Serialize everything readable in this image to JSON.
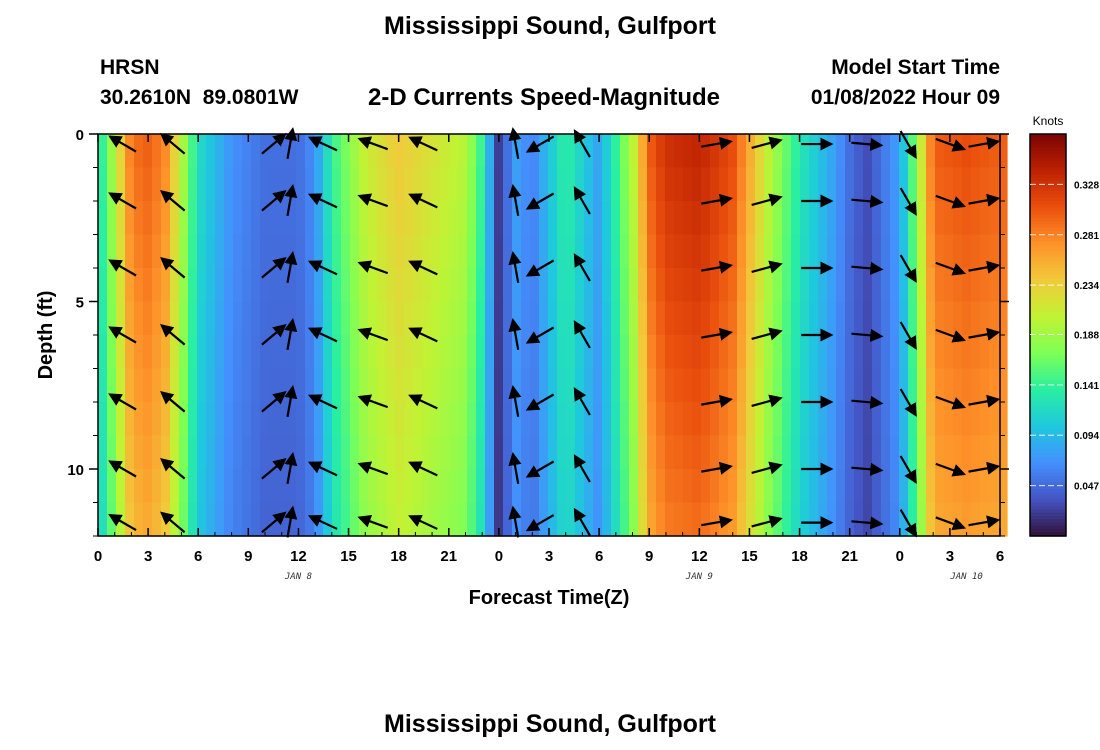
{
  "page": {
    "title": "Mississippi Sound, Gulfport",
    "title_bottom": "Mississippi Sound, Gulfport",
    "station_id": "HRSN",
    "station_coords": "30.2610N  89.0801W",
    "subtitle": "2-D Currents Speed-Magnitude",
    "model_start_label": "Model Start Time",
    "model_start_value": "01/08/2022 Hour 09"
  },
  "chart_data": {
    "type": "heatmap",
    "xlabel": "Forecast Time(Z)",
    "ylabel": "Depth (ft)",
    "x_tick_labels": [
      "0",
      "3",
      "6",
      "9",
      "12",
      "15",
      "18",
      "21",
      "0",
      "3",
      "6",
      "9",
      "12",
      "15",
      "18",
      "21",
      "0",
      "3",
      "6"
    ],
    "x_range_hours": [
      0,
      54
    ],
    "day_labels": [
      {
        "label": "JAN 8",
        "hour": 12
      },
      {
        "label": "JAN 9",
        "hour": 36
      },
      {
        "label": "JAN 10",
        "hour": 52
      }
    ],
    "y_ticks": [
      0,
      5,
      10
    ],
    "ylim": [
      0,
      12
    ],
    "y_inverted": true,
    "colorbar": {
      "title": "Knots",
      "min": 0.0,
      "max": 0.375,
      "ticks": [
        "0.047",
        "0.094",
        "0.141",
        "0.188",
        "0.234",
        "0.281",
        "0.328"
      ],
      "tick_values": [
        0.047,
        0.094,
        0.141,
        0.188,
        0.234,
        0.281,
        0.328
      ],
      "colormap": [
        "#30123b",
        "#4454c4",
        "#4490fe",
        "#1fc8de",
        "#29efa2",
        "#7dff56",
        "#c1f334",
        "#f1ca3a",
        "#fe922a",
        "#ea4f0d",
        "#be2102",
        "#7a0403"
      ]
    },
    "speed_profile_hours": [
      0,
      1,
      2,
      3,
      4,
      5,
      6,
      8,
      10,
      12,
      13,
      14,
      16,
      18,
      20,
      22,
      23,
      24,
      25,
      26,
      28,
      30,
      32,
      33,
      34,
      36,
      38,
      40,
      42,
      44,
      45,
      46,
      48,
      49,
      50,
      52,
      54
    ],
    "speed_profile_knots": [
      0.12,
      0.2,
      0.29,
      0.3,
      0.28,
      0.2,
      0.12,
      0.07,
      0.05,
      0.05,
      0.07,
      0.14,
      0.21,
      0.24,
      0.22,
      0.2,
      0.14,
      0.02,
      0.08,
      0.06,
      0.14,
      0.08,
      0.2,
      0.3,
      0.33,
      0.34,
      0.31,
      0.21,
      0.13,
      0.08,
      0.05,
      0.03,
      0.08,
      0.18,
      0.3,
      0.31,
      0.3
    ],
    "depth_levels_ft": [
      0,
      2,
      4,
      6,
      8,
      10,
      12
    ],
    "vector_hours": [
      1.5,
      4.5,
      10.5,
      11.5,
      13.5,
      16.5,
      19.5,
      25,
      26.5,
      29,
      37,
      40,
      43,
      46,
      48.5,
      51,
      53
    ],
    "vector_angles_deg": [
      -150,
      -140,
      -40,
      -80,
      -155,
      -160,
      -155,
      -100,
      150,
      -120,
      -10,
      -15,
      0,
      5,
      60,
      20,
      -10
    ]
  }
}
